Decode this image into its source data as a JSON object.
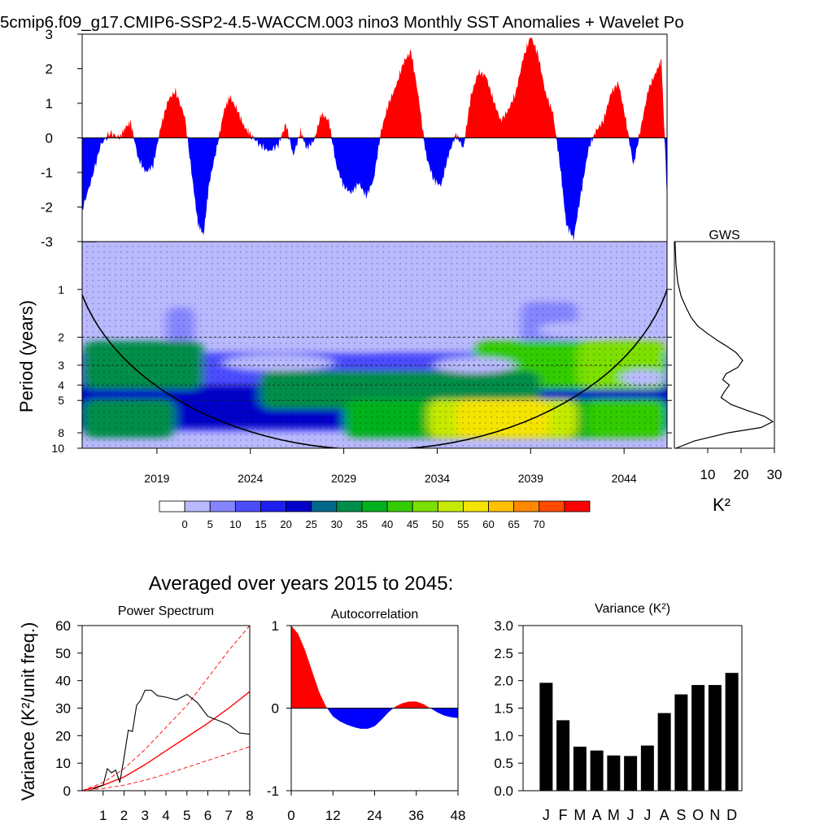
{
  "title": "5cmip6.f09_g17.CMIP6-SSP2-4.5-WACCM.003 nino3 Monthly SST Anomalies + Wavelet Po",
  "colors": {
    "positive": "#ff0000",
    "negative": "#0000ff",
    "background": "#ffffff"
  },
  "chart_data": [
    {
      "type": "area",
      "panel": "anomaly-timeseries",
      "title": "",
      "xlim": [
        2015,
        2046.3
      ],
      "ylim": [
        -3,
        3
      ],
      "yticks": [
        "3",
        "2",
        "1",
        "0",
        "-1",
        "-2",
        "-3"
      ],
      "yticks_values": [
        3,
        2,
        1,
        0,
        -1,
        -2,
        -3
      ],
      "fill_positive": "#ff0000",
      "fill_negative": "#0000ff",
      "x": [
        2015.0,
        2015.5,
        2016.0,
        2016.5,
        2017.0,
        2017.3,
        2017.6,
        2018.0,
        2018.4,
        2018.8,
        2019.2,
        2019.6,
        2020.0,
        2020.5,
        2020.9,
        2021.2,
        2021.5,
        2021.8,
        2022.2,
        2022.6,
        2022.9,
        2023.3,
        2023.7,
        2024.0,
        2024.5,
        2025.0,
        2025.5,
        2025.9,
        2026.3,
        2026.7,
        2027.0,
        2027.4,
        2027.8,
        2028.2,
        2028.6,
        2029.0,
        2029.4,
        2029.8,
        2030.2,
        2030.6,
        2031.0,
        2031.4,
        2031.8,
        2032.2,
        2032.6,
        2033.0,
        2033.4,
        2033.8,
        2034.2,
        2034.6,
        2035.0,
        2035.4,
        2035.8,
        2036.2,
        2036.6,
        2037.0,
        2037.4,
        2037.8,
        2038.2,
        2038.6,
        2039.0,
        2039.4,
        2039.8,
        2040.2,
        2040.6,
        2040.9,
        2041.3,
        2041.7,
        2042.1,
        2042.5,
        2042.9,
        2043.3,
        2043.7,
        2044.1,
        2044.5,
        2044.9,
        2045.3,
        2045.7,
        2046.0,
        2046.3
      ],
      "y": [
        -2.1,
        -1.2,
        -0.2,
        0.15,
        0.0,
        0.3,
        0.45,
        -0.6,
        -1.0,
        -0.8,
        0.3,
        1.1,
        1.35,
        0.6,
        -1.2,
        -2.5,
        -2.8,
        -1.3,
        -0.3,
        0.8,
        1.2,
        0.8,
        0.3,
        0.1,
        -0.2,
        -0.4,
        -0.2,
        0.4,
        -0.5,
        0.2,
        -0.3,
        -0.1,
        0.7,
        0.5,
        -0.8,
        -1.4,
        -1.6,
        -1.3,
        -1.7,
        -1.2,
        0.2,
        1.0,
        1.5,
        2.2,
        2.5,
        1.2,
        -0.5,
        -1.2,
        -1.4,
        -0.5,
        0.1,
        -0.3,
        1.2,
        1.9,
        1.8,
        1.1,
        0.5,
        0.8,
        1.3,
        2.3,
        2.95,
        2.4,
        1.3,
        0.7,
        -0.9,
        -2.5,
        -2.9,
        -1.6,
        -0.3,
        0.2,
        0.5,
        1.3,
        1.6,
        0.5,
        -0.8,
        0.3,
        1.4,
        1.9,
        2.25,
        -1.7
      ]
    },
    {
      "type": "heatmap",
      "panel": "wavelet-power",
      "ylabel": "Period (years)",
      "yscale": "log",
      "ylim": [
        0.5,
        10
      ],
      "yticks": [
        "1",
        "2",
        "3",
        "4",
        "5",
        "8",
        "10"
      ],
      "yticks_values": [
        1,
        2,
        3,
        4,
        5,
        8,
        10
      ],
      "xlim": [
        2015,
        2046.3
      ],
      "xticks": [
        "2019",
        "2024",
        "2029",
        "2034",
        "2039",
        "2044"
      ],
      "xticks_values": [
        2019,
        2024,
        2029,
        2034,
        2039,
        2044
      ],
      "dashed_periods": [
        2,
        3,
        4,
        5
      ],
      "cone_of_influence": true,
      "significance_stipple": true,
      "bands": [
        {
          "period": 3.0,
          "from": 2015.0,
          "to": 2021.5,
          "level": 30
        },
        {
          "period": 3.0,
          "from": 2036.0,
          "to": 2046.3,
          "level": 40
        },
        {
          "period": 3.0,
          "from": 2041.5,
          "to": 2046.3,
          "level": 45
        },
        {
          "period": 4.3,
          "from": 2024.5,
          "to": 2039.5,
          "level": 30
        },
        {
          "period": 6.5,
          "from": 2015.0,
          "to": 2020.0,
          "level": 30
        },
        {
          "period": 6.5,
          "from": 2029.0,
          "to": 2046.3,
          "level": 35
        },
        {
          "period": 6.5,
          "from": 2033.5,
          "to": 2041.5,
          "level": 50
        },
        {
          "period": 6.5,
          "from": 2035.0,
          "to": 2040.0,
          "level": 55
        },
        {
          "period": 6.5,
          "from": 2042.0,
          "to": 2046.3,
          "level": 40
        }
      ]
    },
    {
      "type": "line",
      "panel": "global-wavelet-spectrum",
      "title": "GWS",
      "xlabel": "K²",
      "xlim": [
        0,
        30
      ],
      "xticks": [
        "10",
        "20",
        "30"
      ],
      "xticks_values": [
        10,
        20,
        30
      ],
      "ylim_periods": [
        0.5,
        10
      ],
      "x": [
        0.2,
        0.5,
        1.0,
        2.0,
        3.5,
        5.0,
        7.0,
        10.0,
        13.0,
        16.0,
        18.5,
        20.5,
        19.0,
        15.5,
        14.5,
        16.5,
        15.0,
        14.0,
        17.0,
        22.0,
        27.0,
        29.5,
        26.0,
        16.0,
        6.0,
        0.5
      ],
      "y": [
        0.5,
        0.7,
        0.9,
        1.1,
        1.3,
        1.5,
        1.7,
        1.9,
        2.1,
        2.3,
        2.5,
        2.8,
        3.1,
        3.4,
        3.7,
        4.0,
        4.4,
        4.8,
        5.3,
        5.8,
        6.3,
        6.8,
        7.4,
        8.0,
        9.0,
        10.0
      ]
    },
    {
      "type": "legend",
      "panel": "colorbar",
      "labels": [
        "0",
        "5",
        "10",
        "15",
        "20",
        "25",
        "30",
        "35",
        "40",
        "45",
        "50",
        "55",
        "60",
        "65",
        "70"
      ],
      "colors": [
        "#ffffff",
        "#b9b9ff",
        "#8585ff",
        "#4c4cff",
        "#1e1ef0",
        "#0000c8",
        "#00688b",
        "#008e4a",
        "#00b21e",
        "#33cc00",
        "#7be000",
        "#c5ea00",
        "#f5e400",
        "#ffc000",
        "#ff8800",
        "#ff4a00",
        "#ff0000"
      ]
    },
    {
      "type": "line",
      "panel": "power-spectrum",
      "title": "Power Spectrum",
      "ylabel": "Variance (K²/unit freq.)",
      "xlim": [
        0,
        8
      ],
      "ylim": [
        0,
        60
      ],
      "xticks": [
        "1",
        "2",
        "3",
        "4",
        "5",
        "6",
        "7",
        "8"
      ],
      "yticks": [
        "0",
        "10",
        "20",
        "30",
        "40",
        "50",
        "60"
      ],
      "series": [
        {
          "x": [
            0.5,
            1.0,
            1.2,
            1.4,
            1.6,
            1.8,
            2.0,
            2.2,
            2.4,
            2.6,
            2.8,
            3.0,
            3.3,
            3.6,
            4.0,
            4.5,
            5.0,
            5.5,
            6.0,
            7.0,
            7.5,
            8.0
          ],
          "y": [
            0.5,
            2.0,
            8.0,
            6.5,
            7.5,
            3.0,
            12.0,
            22.0,
            21.5,
            31.0,
            33.0,
            36.5,
            36.5,
            34.5,
            34.0,
            33.0,
            35.0,
            32.0,
            27.0,
            24.0,
            21.0,
            20.5
          ]
        }
      ],
      "reference": {
        "x": [
          0,
          1,
          2,
          3,
          4,
          5,
          6,
          7,
          8
        ],
        "red_noise": [
          0,
          2.0,
          5.0,
          9.5,
          14.5,
          19.5,
          24.5,
          30.0,
          36.0
        ],
        "upper": [
          0,
          3.0,
          8.0,
          15.0,
          23.0,
          31.0,
          41.0,
          51.0,
          61.0
        ],
        "lower": [
          0,
          0.8,
          2.0,
          3.8,
          6.0,
          8.5,
          11.0,
          13.5,
          16.0
        ]
      }
    },
    {
      "type": "area",
      "panel": "autocorrelation",
      "title": "Autocorrelation",
      "xlim": [
        0,
        48
      ],
      "ylim": [
        -1,
        1
      ],
      "xticks": [
        "0",
        "12",
        "24",
        "36",
        "48"
      ],
      "yticks": [
        "1",
        "0",
        "-1"
      ],
      "x": [
        0,
        2,
        4,
        6,
        8,
        10,
        12,
        14,
        16,
        18,
        20,
        22,
        24,
        26,
        28,
        30,
        32,
        34,
        36,
        38,
        40,
        42,
        44,
        46,
        48
      ],
      "y": [
        1.0,
        0.9,
        0.7,
        0.45,
        0.2,
        0.02,
        -0.1,
        -0.16,
        -0.2,
        -0.23,
        -0.25,
        -0.25,
        -0.22,
        -0.14,
        -0.05,
        0.02,
        0.06,
        0.08,
        0.08,
        0.05,
        0.0,
        -0.05,
        -0.09,
        -0.11,
        -0.12
      ]
    },
    {
      "type": "bar",
      "panel": "monthly-variance",
      "title": "Variance (K²)",
      "categories": [
        "J",
        "F",
        "M",
        "A",
        "M",
        "J",
        "J",
        "A",
        "S",
        "O",
        "N",
        "D"
      ],
      "values": [
        1.96,
        1.28,
        0.8,
        0.73,
        0.64,
        0.63,
        0.82,
        1.41,
        1.75,
        1.92,
        1.92,
        2.14
      ],
      "ylim": [
        0,
        3
      ],
      "yticks": [
        "0.0",
        "0.5",
        "1.0",
        "1.5",
        "2.0",
        "2.5",
        "3.0"
      ]
    }
  ],
  "lower_title": "Averaged over years 2015 to 2045:"
}
